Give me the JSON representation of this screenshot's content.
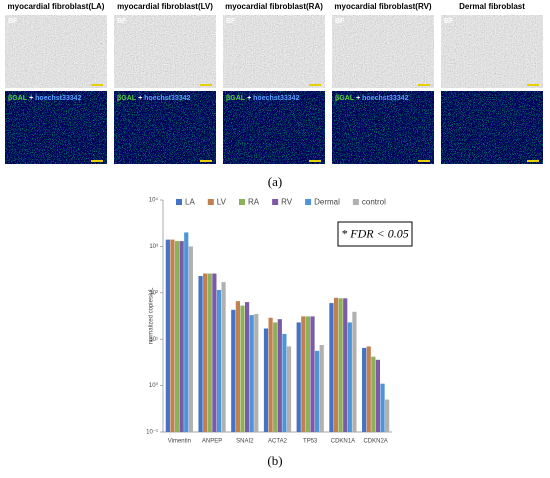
{
  "figure": {
    "panel_a_label": "(a)",
    "panel_b_label": "(b)",
    "columns": [
      {
        "title": "myocardial fibroblast(LA)",
        "bf_label": "BF",
        "fl_label": [
          "βGAL",
          "+",
          "hoechst33342"
        ]
      },
      {
        "title": "myocardial fibroblast(LV)",
        "bf_label": "BF",
        "fl_label": [
          "βGAL",
          "+",
          "hoechst33342"
        ]
      },
      {
        "title": "myocardial fibroblast(RA)",
        "bf_label": "BF",
        "fl_label": [
          "βGAL",
          "+",
          "hoechst33342"
        ]
      },
      {
        "title": "myocardial fibroblast(RV)",
        "bf_label": "BF",
        "fl_label": [
          "βGAL",
          "+",
          "hoechst33342"
        ]
      },
      {
        "title": "Dermal fibroblast",
        "bf_label": "BF"
      }
    ]
  },
  "chart_data": {
    "type": "bar",
    "y_label": "normalized copies/µL",
    "annotation": "* FDR < 0.05",
    "log_scale": true,
    "categories": [
      "Vimentin",
      "ANPEP",
      "SNAI2",
      "ACTA2",
      "TP53",
      "CDKN1A",
      "CDKN2A"
    ],
    "series": [
      {
        "name": "LA",
        "color": "#4472c4",
        "values": [
          1400,
          230,
          43,
          17,
          23,
          60,
          6.5
        ]
      },
      {
        "name": "LV",
        "color": "#c0804f",
        "values": [
          1400,
          260,
          66,
          29,
          31,
          78,
          7
        ]
      },
      {
        "name": "RA",
        "color": "#8fb05a",
        "values": [
          1300,
          260,
          53,
          23,
          31,
          76,
          4.2
        ]
      },
      {
        "name": "RV",
        "color": "#7b5aa6",
        "values": [
          1300,
          260,
          63,
          27,
          31,
          76,
          3.6
        ]
      },
      {
        "name": "Dermal",
        "color": "#4e94d6",
        "values": [
          2000,
          115,
          33,
          13,
          5.6,
          23,
          1.1
        ]
      },
      {
        "name": "control",
        "color": "#b0b0b0",
        "values": [
          1000,
          170,
          35,
          7,
          7.5,
          39,
          0.5
        ]
      }
    ],
    "ylim": [
      0.1,
      10000
    ],
    "yticks": [
      {
        "value": 0.1,
        "label": "10⁻¹"
      },
      {
        "value": 1,
        "label": "10⁰"
      },
      {
        "value": 10,
        "label": "10¹"
      },
      {
        "value": 100,
        "label": "10²"
      },
      {
        "value": 1000,
        "label": "10³"
      },
      {
        "value": 10000,
        "label": "10⁴"
      }
    ],
    "grid": false
  }
}
